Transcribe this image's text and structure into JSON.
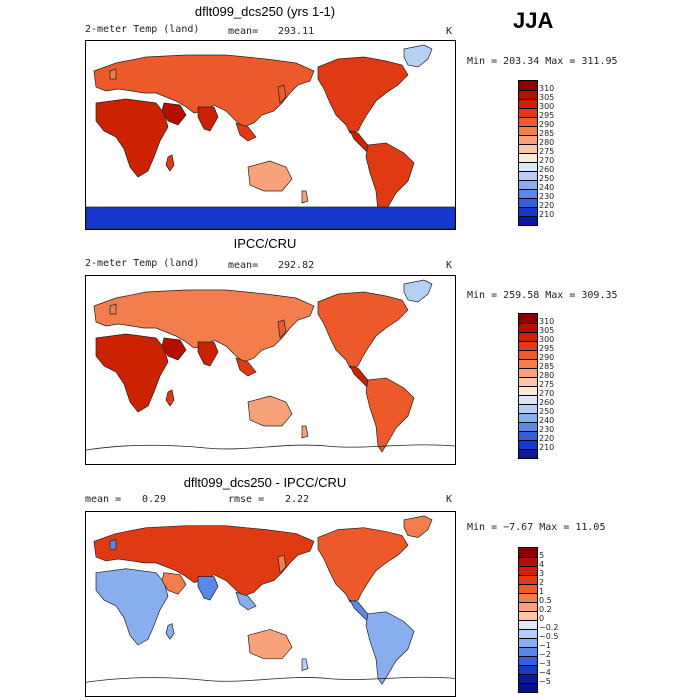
{
  "season": "JJA",
  "panels": [
    {
      "title": "dflt099_dcs250 (yrs 1-1)",
      "left_label": "2-meter Temp (land)",
      "mean_label": "mean=",
      "mean_value": "293.11",
      "units": "K",
      "minmax": "Min = 203.34 Max = 311.95",
      "antarctic": "cold",
      "colorbar": {
        "labels": [
          "310",
          "305",
          "300",
          "295",
          "290",
          "285",
          "280",
          "275",
          "270",
          "260",
          "250",
          "240",
          "230",
          "220",
          "210"
        ],
        "colors": [
          "#8b0000",
          "#b40f00",
          "#cc2200",
          "#e03a12",
          "#ec5a2c",
          "#f27d4d",
          "#f7a27a",
          "#fcc7a8",
          "#fde9dc",
          "#d9e8fb",
          "#b5cff5",
          "#89aef0",
          "#5b87e8",
          "#3560dd",
          "#1638cc",
          "#0a1aa0"
        ]
      }
    },
    {
      "title": "IPCC/CRU",
      "left_label": "2-meter Temp (land)",
      "mean_label": "mean=",
      "mean_value": "292.82",
      "units": "K",
      "minmax": "Min = 259.58 Max = 309.35",
      "antarctic": "none",
      "colorbar": {
        "labels": [
          "310",
          "305",
          "300",
          "295",
          "290",
          "285",
          "280",
          "275",
          "270",
          "260",
          "250",
          "240",
          "230",
          "220",
          "210"
        ],
        "colors": [
          "#8b0000",
          "#b40f00",
          "#cc2200",
          "#e03a12",
          "#ec5a2c",
          "#f27d4d",
          "#f7a27a",
          "#fcc7a8",
          "#fde9dc",
          "#d9e8fb",
          "#b5cff5",
          "#89aef0",
          "#5b87e8",
          "#3560dd",
          "#1638cc",
          "#0a1aa0"
        ]
      }
    },
    {
      "title": "dflt099_dcs250 - IPCC/CRU",
      "left_label": "mean =",
      "mean_label": "",
      "mean_value": "0.29",
      "rmse_label": "rmse =",
      "rmse_value": "2.22",
      "units": "K",
      "minmax": "Min = −7.67 Max = 11.05",
      "antarctic": "none",
      "colorbar": {
        "labels": [
          "5",
          "4",
          "3",
          "2",
          "1",
          "0.5",
          "0.2",
          "0",
          "−0.2",
          "−0.5",
          "−1",
          "−2",
          "−3",
          "−4",
          "−5"
        ],
        "colors": [
          "#8b0000",
          "#b40f00",
          "#cc2200",
          "#e03a12",
          "#ec5a2c",
          "#f27d4d",
          "#f7a27a",
          "#fcc7a8",
          "#dfe9fa",
          "#b5cff5",
          "#89aef0",
          "#5b87e8",
          "#3560dd",
          "#1638cc",
          "#0a1aa0",
          "#05108a"
        ]
      }
    }
  ]
}
